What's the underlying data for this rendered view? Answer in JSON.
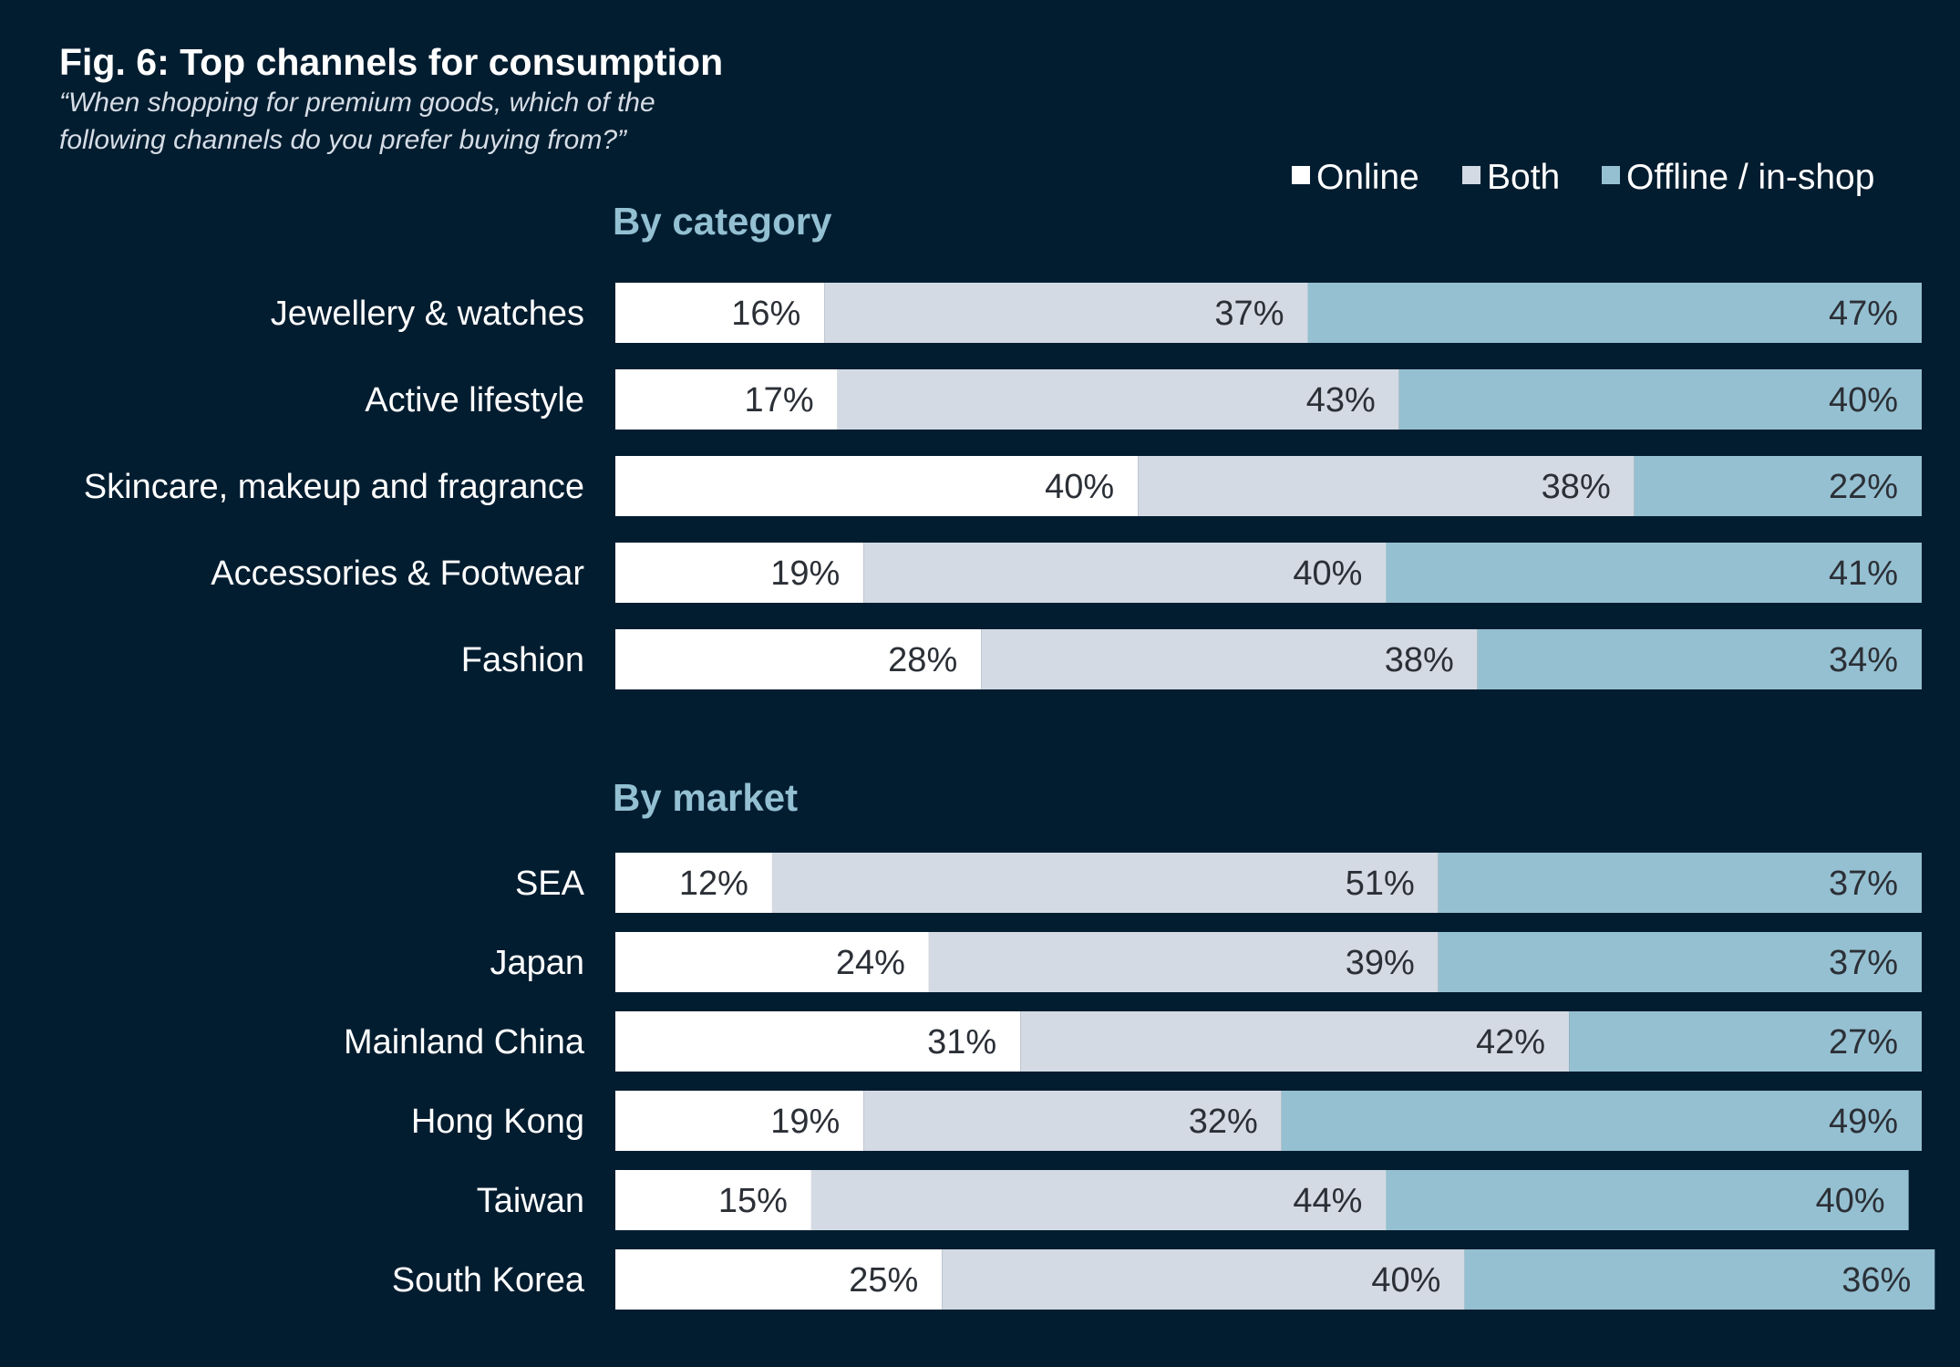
{
  "chart_data": {
    "type": "stacked-bar-horizontal",
    "title": "Fig. 6: Top channels for consumption",
    "subtitle_lines": [
      "“When shopping for premium goods, which of the",
      "following channels do you prefer buying from?”"
    ],
    "legend": [
      {
        "name": "Online",
        "color": "#ffffff"
      },
      {
        "name": "Both",
        "color": "#d3dae3"
      },
      {
        "name": "Offline / in-shop",
        "color": "#95c0d1"
      }
    ],
    "series_names": [
      "Online",
      "Both",
      "Offline / in-shop"
    ],
    "colors": [
      "#ffffff",
      "#d3dae3",
      "#95c0d1"
    ],
    "xlim": [
      0,
      100
    ],
    "value_suffix": "%",
    "groups": [
      {
        "name": "By category",
        "categories": [
          "Jewellery & watches",
          "Active lifestyle",
          "Skincare, makeup and fragrance",
          "Accessories & Footwear",
          "Fashion"
        ],
        "series": [
          {
            "name": "Online",
            "values": [
              16,
              17,
              40,
              19,
              28
            ]
          },
          {
            "name": "Both",
            "values": [
              37,
              43,
              38,
              40,
              38
            ]
          },
          {
            "name": "Offline / in-shop",
            "values": [
              47,
              40,
              22,
              41,
              34
            ]
          }
        ]
      },
      {
        "name": "By market",
        "categories": [
          "SEA",
          "Japan",
          "Mainland China",
          "Hong Kong",
          "Taiwan",
          "South Korea"
        ],
        "series": [
          {
            "name": "Online",
            "values": [
              12,
              24,
              31,
              19,
              15,
              25
            ]
          },
          {
            "name": "Both",
            "values": [
              51,
              39,
              42,
              32,
              44,
              40
            ]
          },
          {
            "name": "Offline / in-shop",
            "values": [
              37,
              37,
              27,
              49,
              40,
              36
            ]
          }
        ]
      }
    ]
  }
}
